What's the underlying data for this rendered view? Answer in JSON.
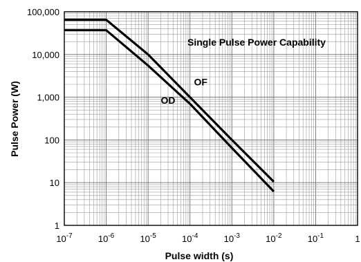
{
  "chart_data": {
    "type": "line",
    "title": "Single Pulse Power Capability",
    "xlabel": "Pulse width (s)",
    "ylabel": "Pulse Power (W)",
    "x_scale": "log",
    "y_scale": "log",
    "xlim": [
      1e-07,
      1
    ],
    "ylim": [
      1,
      100000
    ],
    "grid": true,
    "x_ticks": [
      {
        "value": 1e-07,
        "base": "10",
        "exp": "-7"
      },
      {
        "value": 1e-06,
        "base": "10",
        "exp": "-6"
      },
      {
        "value": 1e-05,
        "base": "10",
        "exp": "-5"
      },
      {
        "value": 0.0001,
        "base": "10",
        "exp": "-4"
      },
      {
        "value": 0.001,
        "base": "10",
        "exp": "-3"
      },
      {
        "value": 0.01,
        "base": "10",
        "exp": "-2"
      },
      {
        "value": 0.1,
        "base": "10",
        "exp": "-1"
      },
      {
        "value": 1,
        "base": "1",
        "exp": ""
      }
    ],
    "y_ticks": [
      {
        "value": 1,
        "label": "1"
      },
      {
        "value": 10,
        "label": "10"
      },
      {
        "value": 100,
        "label": "100"
      },
      {
        "value": 1000,
        "label": "1,000"
      },
      {
        "value": 10000,
        "label": "10,000"
      },
      {
        "value": 100000,
        "label": "100,000"
      }
    ],
    "series": [
      {
        "name": "OF",
        "x": [
          1e-07,
          1e-06,
          1e-05,
          0.0001,
          0.001,
          0.01
        ],
        "y": [
          65000,
          65000,
          10000,
          1000,
          100,
          10.5
        ]
      },
      {
        "name": "OD",
        "x": [
          1e-07,
          1e-06,
          1e-05,
          0.0001,
          0.001,
          0.01
        ],
        "y": [
          37000,
          37000,
          5500,
          700,
          65,
          6.2
        ]
      }
    ],
    "annotations": [
      {
        "text": "OF",
        "x": 0.00018,
        "y": 1900
      },
      {
        "text": "OD",
        "x": 3e-05,
        "y": 700
      }
    ]
  }
}
